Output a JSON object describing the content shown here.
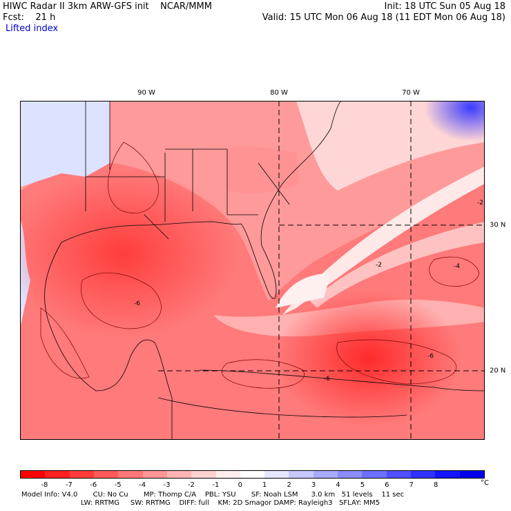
{
  "header": {
    "title_line": "HIWC Radar II 3km ARW-GFS init    NCAR/MMM",
    "init_line": "Init: 18 UTC Sun 05 Aug 18",
    "fcst_line": "Fcst:    21 h",
    "valid_line": "Valid: 15 UTC Mon 06 Aug 18 (11 EDT Mon 06 Aug 18)",
    "field_label": "Lifted index"
  },
  "map": {
    "lon_labels": [
      "90 W",
      "80 W",
      "70 W"
    ],
    "lat_labels": [
      "30 N",
      "20 N"
    ],
    "contour_labels": [
      "-2",
      "-4",
      "-6",
      "-6",
      "-6",
      "-2"
    ]
  },
  "colorbar": {
    "ticks": [
      "-8",
      "-7",
      "-6",
      "-5",
      "-4",
      "-3",
      "-2",
      "-1",
      "0",
      "1",
      "2",
      "3",
      "4",
      "5",
      "6",
      "7",
      "8"
    ],
    "unit": "°C",
    "colors": [
      "#ff0000",
      "#ff2020",
      "#ff3c3c",
      "#ff5a5a",
      "#ff7878",
      "#ff9696",
      "#ffb4b4",
      "#ffd2d2",
      "#ffeeee",
      "#ffffff",
      "#e6e6ff",
      "#c8c8ff",
      "#aaaaff",
      "#8c8cff",
      "#6e6eff",
      "#5050ff",
      "#3232ff",
      "#1414ff",
      "#0000ee"
    ]
  },
  "footer": {
    "line1": "Model Info: V4.0       CU: No Cu       MP: Thomp C/A    PBL: YSU       SF: Noah LSM      3.0 km   51 levels    11 sec",
    "line2": "                           LW: RRTMG     SW: RRTMG    DIFF: full    KM: 2D Smagor DAMP: Rayleigh3   SFLAY: MM5"
  }
}
